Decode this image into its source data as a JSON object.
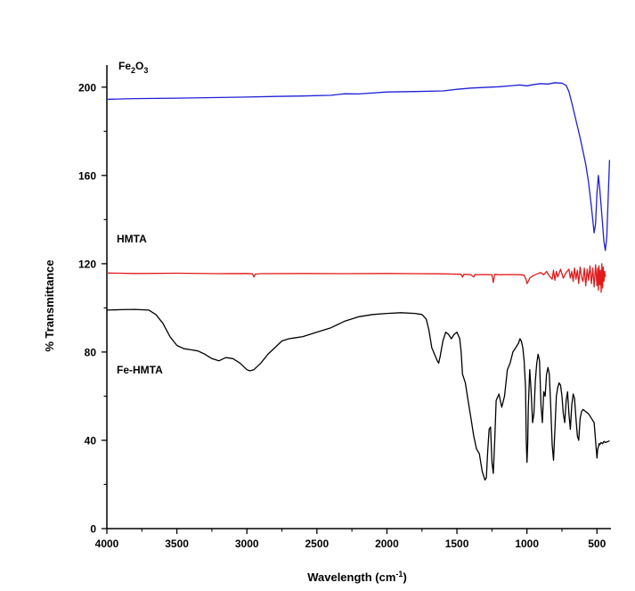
{
  "chart_data": {
    "type": "line",
    "title": "",
    "xlabel": "Wavelength (cm",
    "xlabel_sup": "-1",
    "xlabel_suffix": ")",
    "ylabel": "% Transmittance",
    "xlim": [
      4000,
      400
    ],
    "ylim": [
      0,
      210
    ],
    "x_ticks": [
      4000,
      3500,
      3000,
      2500,
      2000,
      1500,
      1000,
      500
    ],
    "y_ticks": [
      0,
      40,
      80,
      120,
      160,
      200
    ],
    "grid": false,
    "series": [
      {
        "name": "Fe2O3",
        "label_parts": [
          "Fe",
          "2",
          "O",
          "3"
        ],
        "color": "#1f1fd6",
        "x": [
          4000,
          3800,
          3500,
          3200,
          3000,
          2800,
          2600,
          2400,
          2300,
          2200,
          2000,
          1800,
          1600,
          1500,
          1400,
          1200,
          1100,
          1050,
          1000,
          950,
          900,
          850,
          800,
          750,
          720,
          700,
          680,
          650,
          620,
          600,
          580,
          560,
          540,
          520,
          510,
          500,
          490,
          480,
          470,
          460,
          450,
          440,
          430,
          420,
          410
        ],
        "y": [
          194.5,
          194.8,
          195.0,
          195.3,
          195.5,
          195.8,
          196.0,
          196.3,
          197.0,
          196.9,
          197.8,
          198.0,
          198.3,
          199.0,
          199.6,
          200.2,
          200.7,
          201.0,
          200.6,
          201.2,
          201.6,
          201.4,
          202.0,
          201.8,
          200.8,
          198.0,
          193.0,
          185.0,
          177.0,
          171.0,
          165.0,
          157.0,
          146.0,
          134.0,
          138.0,
          152.0,
          160.0,
          154.0,
          146.0,
          138.0,
          130.0,
          126.0,
          132.0,
          150.0,
          167.0
        ]
      },
      {
        "name": "HMTA",
        "label_parts": [
          "HMTA"
        ],
        "color": "#e01b1b",
        "x": [
          4000,
          3800,
          3500,
          3200,
          3000,
          2960,
          2950,
          2940,
          2900,
          2600,
          2300,
          2000,
          1800,
          1600,
          1470,
          1460,
          1450,
          1400,
          1380,
          1370,
          1360,
          1300,
          1250,
          1240,
          1230,
          1200,
          1100,
          1050,
          1020,
          1005,
          1000,
          990,
          980,
          960,
          940,
          920,
          900,
          880,
          860,
          840,
          820,
          810,
          800,
          790,
          780,
          760,
          740,
          720,
          700,
          690,
          680,
          670,
          660,
          650,
          640,
          630,
          620,
          610,
          600,
          590,
          580,
          570,
          560,
          550,
          540,
          530,
          520,
          510,
          500,
          495,
          490,
          485,
          480,
          475,
          470,
          465,
          460,
          455,
          450,
          445,
          440
        ],
        "y": [
          115.8,
          115.6,
          115.7,
          115.5,
          115.6,
          115.4,
          114.0,
          115.3,
          115.5,
          115.6,
          115.5,
          115.6,
          115.5,
          115.4,
          115.2,
          114.0,
          115.2,
          115.0,
          114.0,
          115.2,
          115.0,
          115.1,
          115.0,
          111.5,
          115.2,
          115.0,
          115.1,
          115.0,
          114.8,
          112.5,
          111.0,
          112.0,
          113.5,
          114.5,
          115.0,
          115.6,
          116.0,
          115.0,
          116.5,
          114.5,
          113.0,
          117.0,
          112.5,
          116.5,
          114.0,
          117.5,
          113.5,
          116.0,
          117.5,
          113.5,
          116.5,
          112.0,
          118.0,
          113.0,
          117.0,
          111.0,
          118.5,
          114.0,
          112.0,
          118.0,
          110.0,
          117.5,
          112.5,
          119.0,
          111.0,
          118.0,
          109.5,
          119.5,
          110.0,
          118.0,
          108.0,
          119.0,
          110.5,
          117.0,
          107.0,
          120.0,
          109.0,
          118.5,
          112.0,
          116.5,
          114.0
        ]
      },
      {
        "name": "Fe-HMTA",
        "label_parts": [
          "Fe-HMTA"
        ],
        "color": "#000000",
        "x": [
          4000,
          3900,
          3800,
          3700,
          3650,
          3600,
          3550,
          3500,
          3450,
          3400,
          3350,
          3300,
          3250,
          3200,
          3150,
          3100,
          3050,
          3000,
          2980,
          2950,
          2900,
          2850,
          2800,
          2750,
          2700,
          2650,
          2600,
          2500,
          2400,
          2300,
          2200,
          2100,
          2000,
          1900,
          1800,
          1750,
          1720,
          1700,
          1680,
          1660,
          1640,
          1630,
          1620,
          1600,
          1580,
          1560,
          1540,
          1520,
          1500,
          1480,
          1470,
          1460,
          1450,
          1440,
          1420,
          1400,
          1380,
          1360,
          1340,
          1320,
          1300,
          1290,
          1280,
          1270,
          1260,
          1250,
          1240,
          1230,
          1220,
          1200,
          1180,
          1160,
          1140,
          1120,
          1100,
          1080,
          1060,
          1050,
          1040,
          1030,
          1020,
          1010,
          1005,
          1000,
          995,
          990,
          980,
          970,
          960,
          950,
          940,
          930,
          920,
          910,
          900,
          890,
          880,
          870,
          860,
          850,
          840,
          830,
          820,
          810,
          800,
          790,
          780,
          770,
          760,
          750,
          740,
          730,
          720,
          710,
          700,
          690,
          680,
          670,
          660,
          650,
          640,
          630,
          620,
          610,
          600,
          580,
          560,
          540,
          520,
          510,
          500,
          495,
          490,
          485,
          480,
          470,
          460,
          450,
          440,
          430,
          420,
          410
        ],
        "y": [
          99.0,
          99.2,
          99.3,
          99.0,
          97.0,
          93.0,
          87.0,
          83.0,
          81.5,
          81.0,
          80.5,
          79.0,
          77.0,
          76.0,
          77.5,
          77.0,
          75.0,
          72.0,
          71.5,
          72.0,
          75.0,
          79.0,
          82.0,
          85.0,
          86.0,
          86.5,
          87.0,
          89.0,
          91.0,
          94.0,
          96.0,
          97.0,
          97.5,
          97.8,
          97.5,
          97.0,
          95.0,
          90.0,
          82.0,
          79.0,
          76.0,
          75.0,
          78.0,
          85.0,
          89.0,
          88.0,
          86.0,
          88.0,
          89.0,
          86.0,
          80.0,
          70.0,
          68.0,
          66.0,
          58.0,
          50.0,
          42.0,
          36.0,
          34.0,
          26.0,
          22.0,
          23.0,
          35.0,
          45.0,
          46.0,
          30.0,
          25.0,
          40.0,
          58.0,
          61.0,
          55.0,
          60.0,
          72.0,
          75.0,
          80.0,
          82.0,
          84.0,
          86.0,
          85.0,
          82.0,
          76.0,
          64.0,
          40.0,
          30.0,
          38.0,
          55.0,
          72.0,
          62.0,
          48.0,
          52.0,
          67.0,
          75.0,
          79.0,
          76.0,
          56.0,
          48.0,
          62.0,
          60.0,
          70.0,
          73.0,
          70.0,
          55.0,
          38.0,
          31.0,
          45.0,
          60.0,
          64.0,
          66.0,
          65.0,
          60.0,
          52.0,
          48.0,
          58.0,
          62.0,
          52.0,
          45.0,
          56.0,
          61.0,
          59.0,
          50.0,
          42.0,
          40.0,
          50.0,
          53.0,
          54.0,
          53.0,
          52.0,
          50.0,
          48.0,
          40.0,
          32.0,
          36.0,
          37.0,
          38.5,
          38.0,
          39.0,
          38.5,
          39.5,
          39.0,
          39.2,
          39.5,
          39.8
        ]
      }
    ]
  }
}
